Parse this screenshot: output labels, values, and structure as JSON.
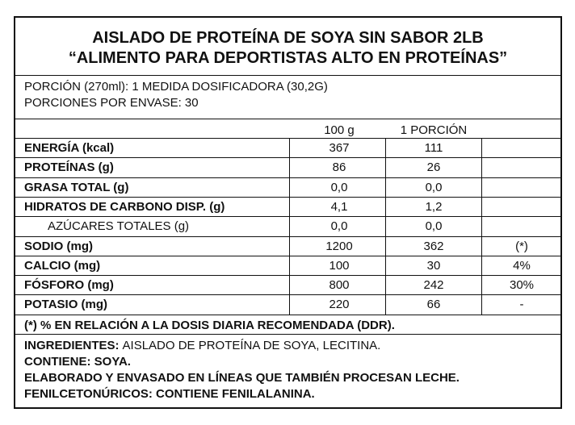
{
  "header": {
    "title_lines": [
      "AISLADO DE PROTEÍNA DE SOYA SIN SABOR 2LB",
      "“ALIMENTO PARA DEPORTISTAS ALTO EN PROTEÍNAS”"
    ]
  },
  "portion": [
    "PORCIÓN (270ml): 1 MEDIDA DOSIFICADORA (30,2G)",
    "PORCIONES POR ENVASE: 30"
  ],
  "table": {
    "columns": [
      "100 g",
      "1 PORCIÓN"
    ],
    "rows": [
      {
        "label": "ENERGÍA (kcal)",
        "per_100g": "367",
        "per_portion": "111"
      },
      {
        "label": "PROTEÍNAS (g)",
        "per_100g": "86",
        "per_portion": "26"
      },
      {
        "label": "GRASA TOTAL (g)",
        "per_100g": "0,0",
        "per_portion": "0,0"
      },
      {
        "label": "HIDRATOS DE CARBONO DISP. (g)",
        "per_100g": "4,1",
        "per_portion": "1,2"
      },
      {
        "label": "AZÚCARES TOTALES (g)",
        "per_100g": "0,0",
        "per_portion": "0,0",
        "sub": true
      },
      {
        "label": "SODIO (mg)",
        "per_100g": "1200",
        "per_portion": "362",
        "dv": "(*)"
      },
      {
        "label": "CALCIO (mg)",
        "per_100g": "100",
        "per_portion": "30",
        "dv": "4%"
      },
      {
        "label": "FÓSFORO (mg)",
        "per_100g": "800",
        "per_portion": "242",
        "dv": "30%"
      },
      {
        "label": "POTASIO (mg)",
        "per_100g": "220",
        "per_portion": "66",
        "dv": "-"
      }
    ]
  },
  "footnote": "(*) % EN RELACIÓN A LA DOSIS DIARIA RECOMENDADA (DDR).",
  "ingredients": {
    "label": "INGREDIENTES:",
    "text": "AISLADO DE PROTEÍNA DE SOYA, LECITINA."
  },
  "notes": [
    "CONTIENE: SOYA.",
    "ELABORADO Y ENVASADO EN LÍNEAS QUE TAMBIÉN PROCESAN LECHE.",
    "FENILCETONÚRICOS: CONTIENE FENILALANINA."
  ]
}
